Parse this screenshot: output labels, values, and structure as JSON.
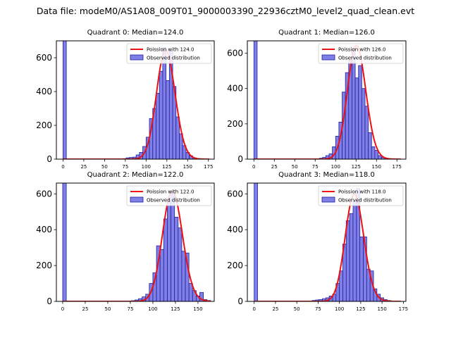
{
  "figure": {
    "title": "Data file: modeM0/AS1A08_009T01_9000003390_22936cztM0_level2_quad_clean.evt"
  },
  "colors": {
    "bar_fill": "#7f7fe6",
    "bar_edge": "#2020a0",
    "curve": "#ee1111",
    "axes": "#000000"
  },
  "chart_data": [
    {
      "type": "bar",
      "title": "Quadrant 0: Median=124.0",
      "median": 124.0,
      "bin_width": 4,
      "x_bins": [
        0,
        4,
        8,
        12,
        16,
        20,
        24,
        28,
        32,
        36,
        40,
        44,
        48,
        52,
        56,
        60,
        64,
        68,
        72,
        76,
        80,
        84,
        88,
        92,
        96,
        100,
        104,
        108,
        112,
        116,
        120,
        124,
        128,
        132,
        136,
        140,
        144,
        148,
        152,
        156,
        160,
        164,
        168,
        172
      ],
      "values": [
        700,
        0,
        0,
        0,
        0,
        0,
        0,
        0,
        0,
        0,
        0,
        0,
        0,
        0,
        0,
        0,
        0,
        2,
        3,
        8,
        10,
        12,
        25,
        40,
        75,
        130,
        240,
        300,
        390,
        520,
        660,
        465,
        640,
        430,
        250,
        150,
        80,
        40,
        20,
        8,
        4,
        2,
        1,
        1
      ],
      "xlim": [
        -8,
        182
      ],
      "ylim": [
        0,
        700
      ],
      "xticks": [
        0,
        25,
        50,
        75,
        100,
        125,
        150,
        175
      ],
      "yticks": [
        0,
        200,
        400,
        600
      ],
      "legend": [
        "Poission with 124.0",
        "Observed distribution"
      ]
    },
    {
      "type": "bar",
      "title": "Quadrant 1: Median=126.0",
      "median": 126.0,
      "bin_width": 4,
      "x_bins": [
        0,
        4,
        8,
        12,
        16,
        20,
        24,
        28,
        32,
        36,
        40,
        44,
        48,
        52,
        56,
        60,
        64,
        68,
        72,
        76,
        80,
        84,
        88,
        92,
        96,
        100,
        104,
        108,
        112,
        116,
        120,
        124,
        128,
        132,
        136,
        140,
        144,
        148,
        152,
        156,
        160,
        164,
        168,
        172,
        176
      ],
      "values": [
        670,
        0,
        0,
        0,
        0,
        0,
        0,
        0,
        0,
        0,
        0,
        0,
        0,
        0,
        0,
        0,
        0,
        0,
        1,
        2,
        5,
        10,
        20,
        30,
        70,
        130,
        210,
        380,
        490,
        560,
        620,
        460,
        530,
        400,
        300,
        150,
        70,
        50,
        20,
        10,
        5,
        2,
        1,
        1,
        0
      ],
      "xlim": [
        -8,
        186
      ],
      "ylim": [
        0,
        670
      ],
      "xticks": [
        0,
        25,
        50,
        75,
        100,
        125,
        150,
        175
      ],
      "yticks": [
        0,
        200,
        400,
        600
      ],
      "legend": [
        "Poission with 126.0",
        "Observed distribution"
      ]
    },
    {
      "type": "bar",
      "title": "Quadrant 2: Median=122.0",
      "median": 122.0,
      "bin_width": 4,
      "x_bins": [
        0,
        4,
        8,
        12,
        16,
        20,
        24,
        28,
        32,
        36,
        40,
        44,
        48,
        52,
        56,
        60,
        64,
        68,
        72,
        76,
        80,
        84,
        88,
        92,
        96,
        100,
        104,
        108,
        112,
        116,
        120,
        124,
        128,
        132,
        136,
        140,
        144,
        148,
        152,
        156,
        160
      ],
      "values": [
        660,
        0,
        0,
        0,
        0,
        0,
        0,
        0,
        0,
        0,
        0,
        0,
        0,
        0,
        0,
        0,
        0,
        0,
        2,
        4,
        8,
        15,
        25,
        40,
        100,
        160,
        310,
        290,
        460,
        560,
        610,
        470,
        410,
        280,
        270,
        100,
        60,
        30,
        50,
        10,
        5
      ],
      "xlim": [
        -7,
        168
      ],
      "ylim": [
        0,
        660
      ],
      "xticks": [
        0,
        25,
        50,
        75,
        100,
        125,
        150
      ],
      "yticks": [
        0,
        200,
        400,
        600
      ],
      "legend": [
        "Poission with 122.0",
        "Observed distribution"
      ]
    },
    {
      "type": "bar",
      "title": "Quadrant 3: Median=118.0",
      "median": 118.0,
      "bin_width": 4,
      "x_bins": [
        0,
        4,
        8,
        12,
        16,
        20,
        24,
        28,
        32,
        36,
        40,
        44,
        48,
        52,
        56,
        60,
        64,
        68,
        72,
        76,
        80,
        84,
        88,
        92,
        96,
        100,
        104,
        108,
        112,
        116,
        120,
        124,
        128,
        132,
        136,
        140,
        144,
        148,
        152,
        156,
        160,
        164,
        168
      ],
      "values": [
        660,
        0,
        0,
        0,
        0,
        0,
        0,
        0,
        0,
        0,
        0,
        0,
        0,
        0,
        0,
        0,
        2,
        5,
        8,
        10,
        15,
        20,
        30,
        40,
        100,
        170,
        320,
        450,
        490,
        560,
        630,
        360,
        360,
        180,
        170,
        70,
        40,
        20,
        10,
        5,
        2,
        1,
        1
      ],
      "xlim": [
        -8,
        178
      ],
      "ylim": [
        0,
        660
      ],
      "xticks": [
        0,
        25,
        50,
        75,
        100,
        125,
        150,
        175
      ],
      "yticks": [
        0,
        200,
        400,
        600
      ],
      "legend": [
        "Poission with 118.0",
        "Observed distribution"
      ]
    }
  ]
}
